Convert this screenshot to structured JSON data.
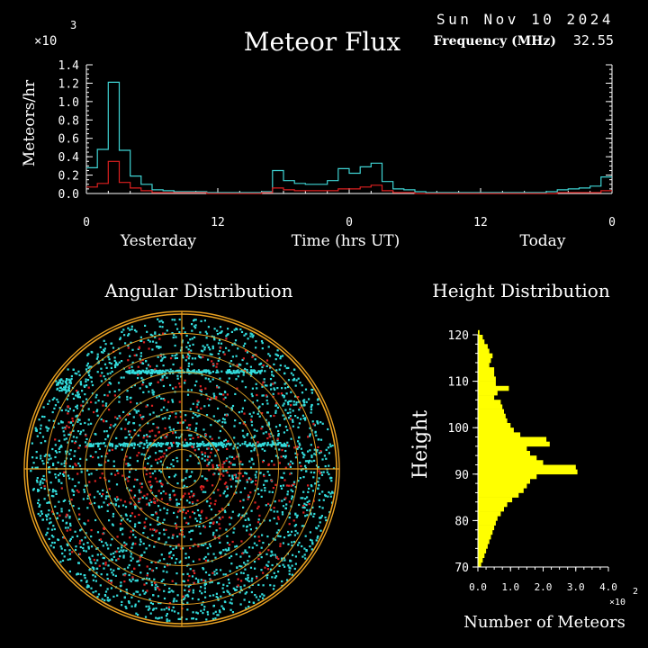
{
  "header": {
    "date": "Sun Nov 10 2024",
    "title": "Meteor Flux",
    "frequency_label": "Frequency (MHz)",
    "frequency_value": "32.55",
    "y_exponent_base": "×10",
    "y_exponent_power": "3"
  },
  "flux_chart": {
    "ylabel": "Meteors/hr",
    "x_label_left": "Yesterday",
    "x_label_center": "Time (hrs UT)",
    "x_label_right": "Today",
    "y_ticks": [
      "0.0",
      "0.2",
      "0.4",
      "0.6",
      "0.8",
      "1.0",
      "1.2",
      "1.4"
    ],
    "x_ticks": [
      "0",
      "12",
      "0",
      "12",
      "0"
    ]
  },
  "angular": {
    "title": "Angular Distribution"
  },
  "height_chart": {
    "title": "Height Distribution",
    "ylabel": "Height",
    "xlabel": "Number of Meteors",
    "x_exponent_base": "×10",
    "x_exponent_power": "2",
    "y_ticks": [
      "70",
      "80",
      "90",
      "100",
      "110",
      "120"
    ],
    "x_ticks": [
      "0.0",
      "1.0",
      "2.0",
      "3.0",
      "4.0"
    ]
  },
  "colors": {
    "background": "#000000",
    "total_series": "#3fd4d4",
    "red_series": "#dd2020",
    "histogram": "#ffff00",
    "grid_ring": "#e8a020",
    "grid_ring_inner": "#c89020",
    "scatter_cyan": "#33dddd",
    "scatter_red": "#dd2222"
  },
  "chart_data": [
    {
      "type": "line",
      "ylabel": "Meteors/hr",
      "y_unit_multiplier": 1000,
      "ylim": [
        0,
        1.4
      ],
      "xlim": [
        0,
        48
      ],
      "x_unit": "hours UT from start of yesterday",
      "series": [
        {
          "color": "#3fd4d4",
          "step": true,
          "x": [
            0,
            1,
            2,
            3,
            4,
            5,
            6,
            7,
            8,
            9,
            10,
            11,
            12,
            13,
            14,
            15,
            16,
            17,
            18,
            19,
            20,
            21,
            22,
            23,
            24,
            25,
            26,
            27,
            28,
            29,
            30,
            31,
            32,
            33,
            34,
            35,
            36,
            37,
            38,
            39,
            40,
            41,
            42,
            43,
            44,
            45,
            46,
            47
          ],
          "values": [
            0.28,
            0.48,
            1.21,
            0.47,
            0.19,
            0.1,
            0.04,
            0.03,
            0.02,
            0.02,
            0.02,
            0.01,
            0.01,
            0.01,
            0.01,
            0.01,
            0.02,
            0.25,
            0.14,
            0.11,
            0.1,
            0.1,
            0.14,
            0.27,
            0.22,
            0.29,
            0.33,
            0.13,
            0.05,
            0.04,
            0.02,
            0.01,
            0.01,
            0.01,
            0.01,
            0.01,
            0.01,
            0.01,
            0.01,
            0.01,
            0.01,
            0.01,
            0.02,
            0.04,
            0.05,
            0.06,
            0.08,
            0.18
          ]
        },
        {
          "color": "#dd2020",
          "step": true,
          "x": [
            0,
            1,
            2,
            3,
            4,
            5,
            6,
            7,
            8,
            9,
            10,
            11,
            12,
            13,
            14,
            15,
            16,
            17,
            18,
            19,
            20,
            21,
            22,
            23,
            24,
            25,
            26,
            27,
            28,
            29,
            30,
            31,
            32,
            33,
            34,
            35,
            36,
            37,
            38,
            39,
            40,
            41,
            42,
            43,
            44,
            45,
            46,
            47
          ],
          "values": [
            0.07,
            0.11,
            0.35,
            0.12,
            0.06,
            0.03,
            0.01,
            0.01,
            0.01,
            0.01,
            0.01,
            0,
            0,
            0,
            0,
            0,
            0.01,
            0.06,
            0.04,
            0.03,
            0.03,
            0.03,
            0.03,
            0.05,
            0.05,
            0.07,
            0.09,
            0.03,
            0.01,
            0.01,
            0,
            0,
            0,
            0,
            0,
            0,
            0,
            0,
            0,
            0,
            0,
            0,
            0,
            0.01,
            0.01,
            0.01,
            0.01,
            0.03
          ]
        }
      ]
    },
    {
      "type": "scatter",
      "title": "Angular Distribution",
      "projection": "polar all-sky (zenith at center)",
      "grid": true
    },
    {
      "type": "bar",
      "orientation": "horizontal",
      "title": "Height Distribution",
      "ylabel": "Height",
      "xlabel": "Number of Meteors",
      "x_unit_multiplier": 100,
      "xlim": [
        0,
        4.0
      ],
      "ylim": [
        70,
        120
      ],
      "bin_width": 1,
      "heights": [
        70,
        71,
        72,
        73,
        74,
        75,
        76,
        77,
        78,
        79,
        80,
        81,
        82,
        83,
        84,
        85,
        86,
        87,
        88,
        89,
        90,
        91,
        92,
        93,
        94,
        95,
        96,
        97,
        98,
        99,
        100,
        101,
        102,
        103,
        104,
        105,
        106,
        107,
        108,
        109,
        110,
        111,
        112,
        113,
        114,
        115,
        116,
        117,
        118,
        119,
        120
      ],
      "values": [
        0.1,
        0.15,
        0.2,
        0.25,
        0.3,
        0.35,
        0.4,
        0.45,
        0.5,
        0.55,
        0.6,
        0.7,
        0.8,
        0.9,
        1.05,
        1.25,
        1.4,
        1.5,
        1.6,
        1.8,
        3.05,
        3.0,
        2.0,
        1.8,
        1.6,
        1.5,
        2.2,
        2.1,
        1.3,
        1.1,
        1.0,
        0.9,
        0.85,
        0.8,
        0.75,
        0.7,
        0.5,
        0.6,
        0.95,
        0.55,
        0.55,
        0.5,
        0.5,
        0.35,
        0.4,
        0.45,
        0.35,
        0.3,
        0.2,
        0.15,
        0.05
      ]
    }
  ]
}
